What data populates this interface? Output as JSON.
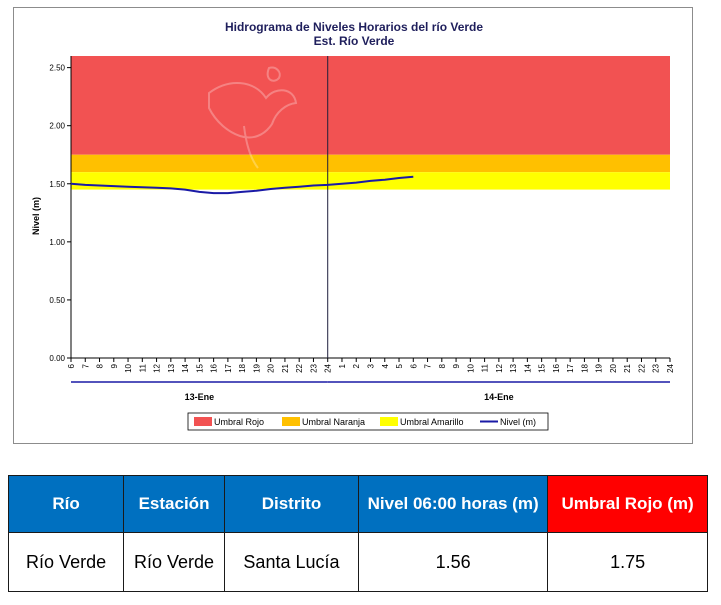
{
  "chart_data": {
    "type": "line",
    "title": "Hidrograma de Niveles Horarios del río Verde",
    "subtitle": "Est. Río Verde",
    "ylabel": "Nivel (m)",
    "ylim": [
      0,
      2.6
    ],
    "y_ticks": [
      "0.00",
      "0.50",
      "1.00",
      "1.50",
      "2.00",
      "2.50"
    ],
    "x_tick_labels": [
      "6",
      "7",
      "8",
      "9",
      "10",
      "11",
      "12",
      "13",
      "14",
      "15",
      "16",
      "17",
      "18",
      "19",
      "20",
      "21",
      "22",
      "23",
      "24",
      "1",
      "2",
      "3",
      "4",
      "5",
      "6",
      "7",
      "8",
      "9",
      "10",
      "11",
      "12",
      "13",
      "14",
      "15",
      "16",
      "17",
      "18",
      "19",
      "20",
      "21",
      "22",
      "23",
      "24"
    ],
    "day_groups": [
      {
        "label": "13-Ene",
        "start_index": 0,
        "end_index": 18
      },
      {
        "label": "14-Ene",
        "start_index": 18,
        "end_index": 42
      }
    ],
    "bands": [
      {
        "name": "Umbral Rojo",
        "from": 1.75,
        "to": 2.6,
        "color": "#f25252"
      },
      {
        "name": "Umbral Naranja",
        "from": 1.6,
        "to": 1.75,
        "color": "#ffc000"
      },
      {
        "name": "Umbral Amarillo",
        "from": 1.45,
        "to": 1.6,
        "color": "#ffff00"
      }
    ],
    "series": [
      {
        "name": "Nivel (m)",
        "color": "#1a1aa6",
        "x_index": [
          0,
          1,
          2,
          3,
          4,
          5,
          6,
          7,
          8,
          9,
          10,
          11,
          12,
          13,
          14,
          15,
          16,
          17,
          18,
          19,
          20,
          21,
          22,
          23,
          24
        ],
        "values": [
          1.5,
          1.49,
          1.485,
          1.48,
          1.475,
          1.47,
          1.465,
          1.46,
          1.45,
          1.43,
          1.42,
          1.42,
          1.43,
          1.44,
          1.455,
          1.465,
          1.475,
          1.485,
          1.49,
          1.5,
          1.51,
          1.525,
          1.535,
          1.55,
          1.56
        ]
      }
    ],
    "legend": [
      "Umbral Rojo",
      "Umbral Naranja",
      "Umbral Amarillo",
      "Nivel (m)"
    ],
    "legend_position": "bottom",
    "grid": false
  },
  "table": {
    "headers": [
      {
        "label": "Río",
        "bg": "#0070c0"
      },
      {
        "label": "Estación",
        "bg": "#0070c0"
      },
      {
        "label": "Distrito",
        "bg": "#0070c0"
      },
      {
        "label": "Nivel 06:00 horas (m)",
        "bg": "#0070c0"
      },
      {
        "label": "Umbral Rojo (m)",
        "bg": "#ff0000"
      }
    ],
    "row": [
      "Río Verde",
      "Río Verde",
      "Santa Lucía",
      "1.56",
      "1.75"
    ]
  }
}
